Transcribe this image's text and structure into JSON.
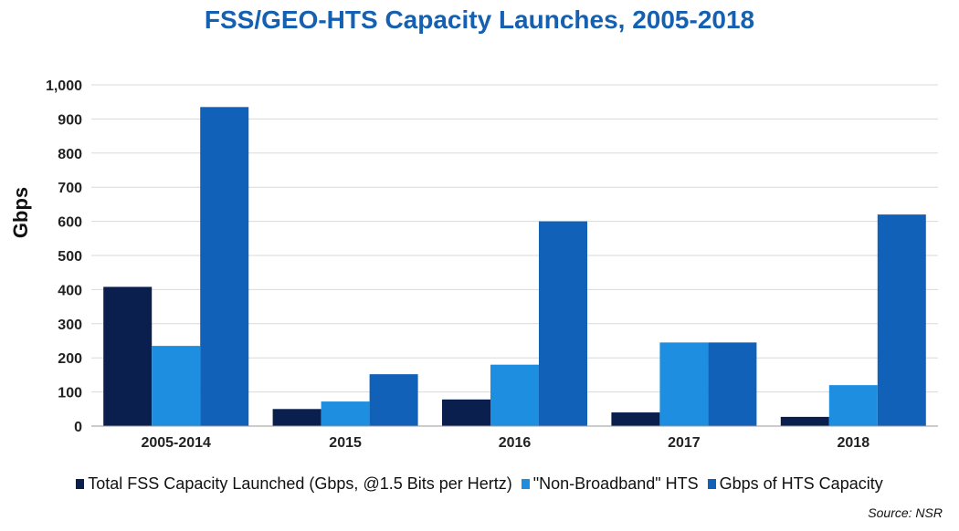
{
  "chart_data": {
    "type": "bar",
    "title": "FSS/GEO-HTS Capacity Launches, 2005-2018",
    "ylabel": "Gbps",
    "xlabel": "",
    "categories": [
      "2005-2014",
      "2015",
      "2016",
      "2017",
      "2018"
    ],
    "ylim": [
      0,
      1000
    ],
    "yticks": [
      "0",
      "100",
      "200",
      "300",
      "400",
      "500",
      "600",
      "700",
      "800",
      "900",
      "1,000"
    ],
    "grid": true,
    "legend_position": "bottom",
    "series": [
      {
        "name": "Total FSS Capacity Launched (Gbps, @1.5 Bits per Hertz)",
        "color": "#0b1f4f",
        "values": [
          408,
          50,
          78,
          40,
          27
        ]
      },
      {
        "name": "\"Non-Broadband\" HTS",
        "color": "#1e8fe0",
        "values": [
          235,
          72,
          180,
          245,
          120
        ]
      },
      {
        "name": "Gbps of HTS Capacity",
        "color": "#1161b8",
        "values": [
          935,
          152,
          600,
          245,
          620
        ]
      }
    ],
    "source": "Source: NSR"
  }
}
